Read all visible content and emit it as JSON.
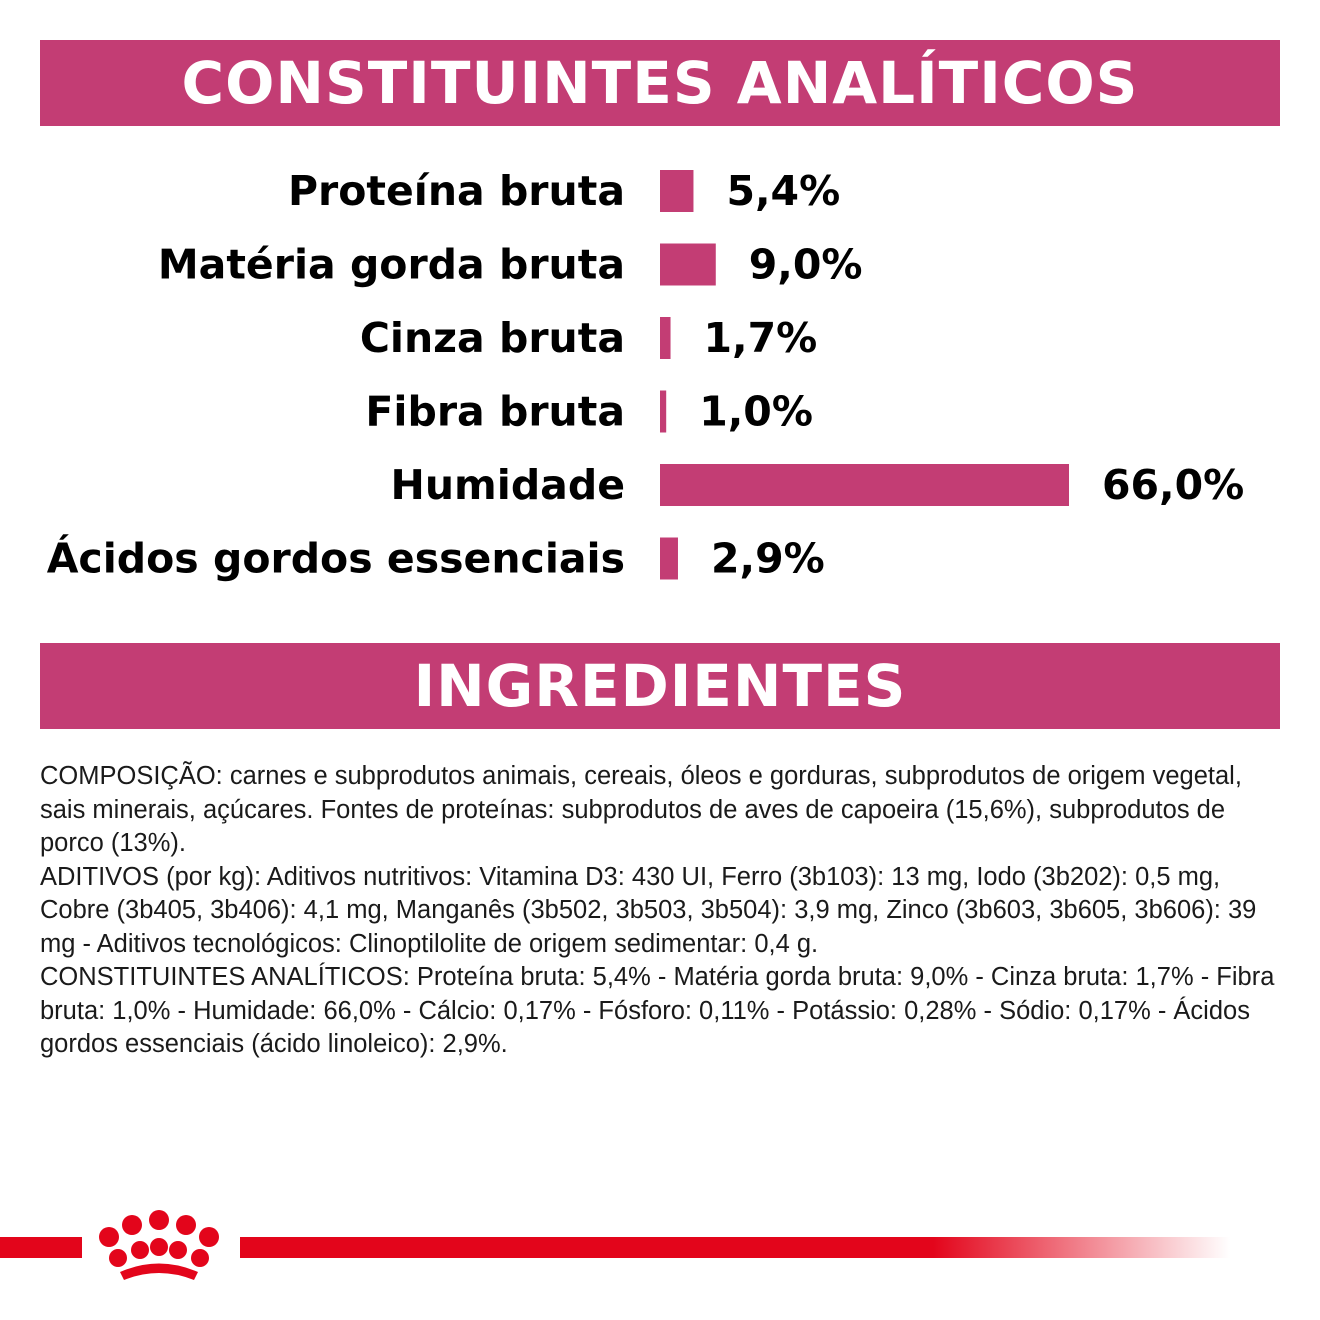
{
  "accent_color": "#c33d74",
  "brand_red": "#e3051b",
  "headers": {
    "analytics": "CONSTITUINTES ANALÍTICOS",
    "ingredients": "INGREDIENTES"
  },
  "chart_data": {
    "type": "bar",
    "orientation": "horizontal",
    "categories": [
      "Proteína bruta",
      "Matéria gorda bruta",
      "Cinza bruta",
      "Fibra bruta",
      "Humidade",
      "Ácidos gordos essenciais"
    ],
    "values": [
      5.4,
      9.0,
      1.7,
      1.0,
      66.0,
      2.9
    ],
    "value_labels": [
      "5,4%",
      "9,0%",
      "1,7%",
      "1,0%",
      "66,0%",
      "2,9%"
    ],
    "color": "#c33d74",
    "xlim": [
      0,
      66.0
    ],
    "grid": false
  },
  "composition": {
    "paragraphs": [
      "COMPOSIÇÃO: carnes e subprodutos animais, cereais, óleos e gorduras, subprodutos de origem vegetal, sais minerais, açúcares. Fontes de proteínas: subprodutos de aves de capoeira (15,6%), subprodutos de porco (13%).",
      "ADITIVOS (por kg): Aditivos nutritivos: Vitamina D3: 430 UI, Ferro (3b103): 13 mg, Iodo (3b202): 0,5 mg, Cobre (3b405, 3b406): 4,1 mg, Manganês (3b502, 3b503, 3b504): 3,9 mg, Zinco (3b603, 3b605, 3b606): 39 mg - Aditivos tecnológicos: Clinoptilolite de origem sedimentar: 0,4 g.",
      "CONSTITUINTES ANALÍTICOS: Proteína bruta: 5,4% - Matéria gorda bruta: 9,0% - Cinza bruta: 1,7% - Fibra bruta: 1,0% - Humidade: 66,0% - Cálcio: 0,17% - Fósforo: 0,11% - Potássio: 0,28% - Sódio: 0,17% - Ácidos gordos essenciais (ácido linoleico): 2,9%."
    ]
  },
  "logo": {
    "icon": "royal-canin-crown-icon"
  }
}
